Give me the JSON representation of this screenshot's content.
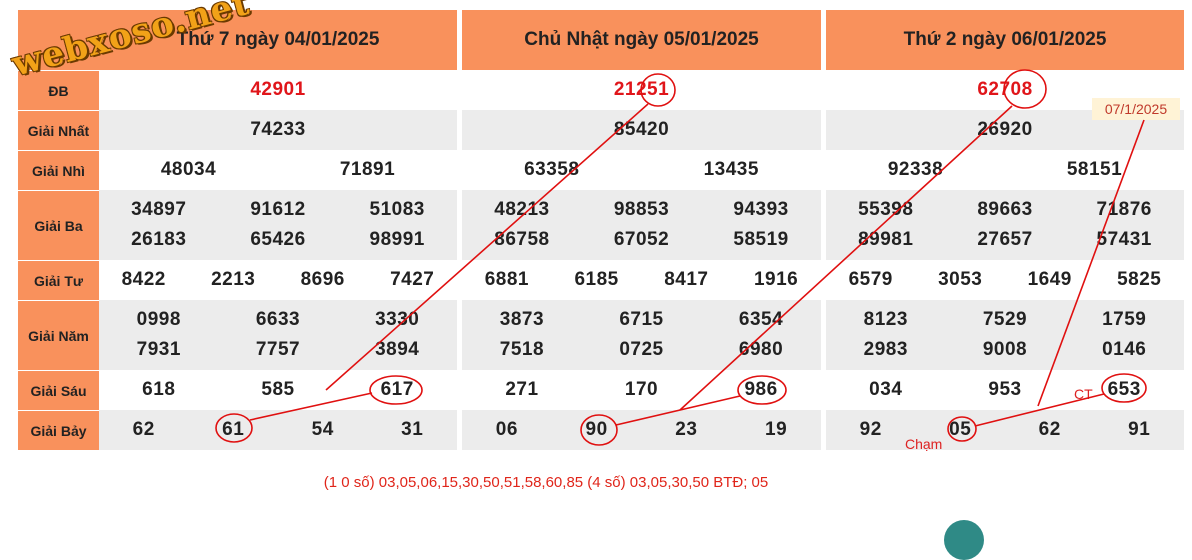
{
  "watermark": "webxoso.net",
  "labels": [
    "ĐB",
    "Giải Nhất",
    "Giải Nhì",
    "Giải Ba",
    "Giải Tư",
    "Giải Năm",
    "Giải Sáu",
    "Giải Bảy"
  ],
  "days": [
    {
      "title": "Thứ 7 ngày 04/01/2025",
      "db": "42901",
      "nhat": "74233",
      "nhi": [
        "48034",
        "71891"
      ],
      "ba": [
        "34897",
        "91612",
        "51083",
        "26183",
        "65426",
        "98991"
      ],
      "tu": [
        "8422",
        "2213",
        "8696",
        "7427"
      ],
      "nam": [
        "0998",
        "6633",
        "3330",
        "7931",
        "7757",
        "3894"
      ],
      "sau": [
        "618",
        "585",
        "617"
      ],
      "bay": [
        "62",
        "61",
        "54",
        "31"
      ]
    },
    {
      "title": "Chủ Nhật ngày 05/01/2025",
      "db": "21251",
      "nhat": "85420",
      "nhi": [
        "63358",
        "13435"
      ],
      "ba": [
        "48213",
        "98853",
        "94393",
        "86758",
        "67052",
        "58519"
      ],
      "tu": [
        "6881",
        "6185",
        "8417",
        "1916"
      ],
      "nam": [
        "3873",
        "6715",
        "6354",
        "7518",
        "0725",
        "6980"
      ],
      "sau": [
        "271",
        "170",
        "986"
      ],
      "bay": [
        "06",
        "90",
        "23",
        "19"
      ]
    },
    {
      "title": "Thứ 2 ngày 06/01/2025",
      "db": "62708",
      "nhat": "26920",
      "nhi": [
        "92338",
        "58151"
      ],
      "ba": [
        "55398",
        "89663",
        "71876",
        "89981",
        "27657",
        "57431"
      ],
      "tu": [
        "6579",
        "3053",
        "1649",
        "5825"
      ],
      "nam": [
        "8123",
        "7529",
        "1759",
        "2983",
        "9008",
        "0146"
      ],
      "sau": [
        "034",
        "953",
        "653"
      ],
      "bay": [
        "92",
        "05",
        "62",
        "91"
      ]
    }
  ],
  "annotations": {
    "date_note": "07/1/2025",
    "ct_label": "CT",
    "cham_label": "Chạm"
  },
  "footer": "(1 0 số) 03,05,06,15,30,50,51,58,60,85 (4 số) 03,05,30,50  BTĐ; 05",
  "colors": {
    "header_bg": "#f9915c",
    "special_prize": "#e0151a",
    "annotation_line": "#e01010"
  }
}
